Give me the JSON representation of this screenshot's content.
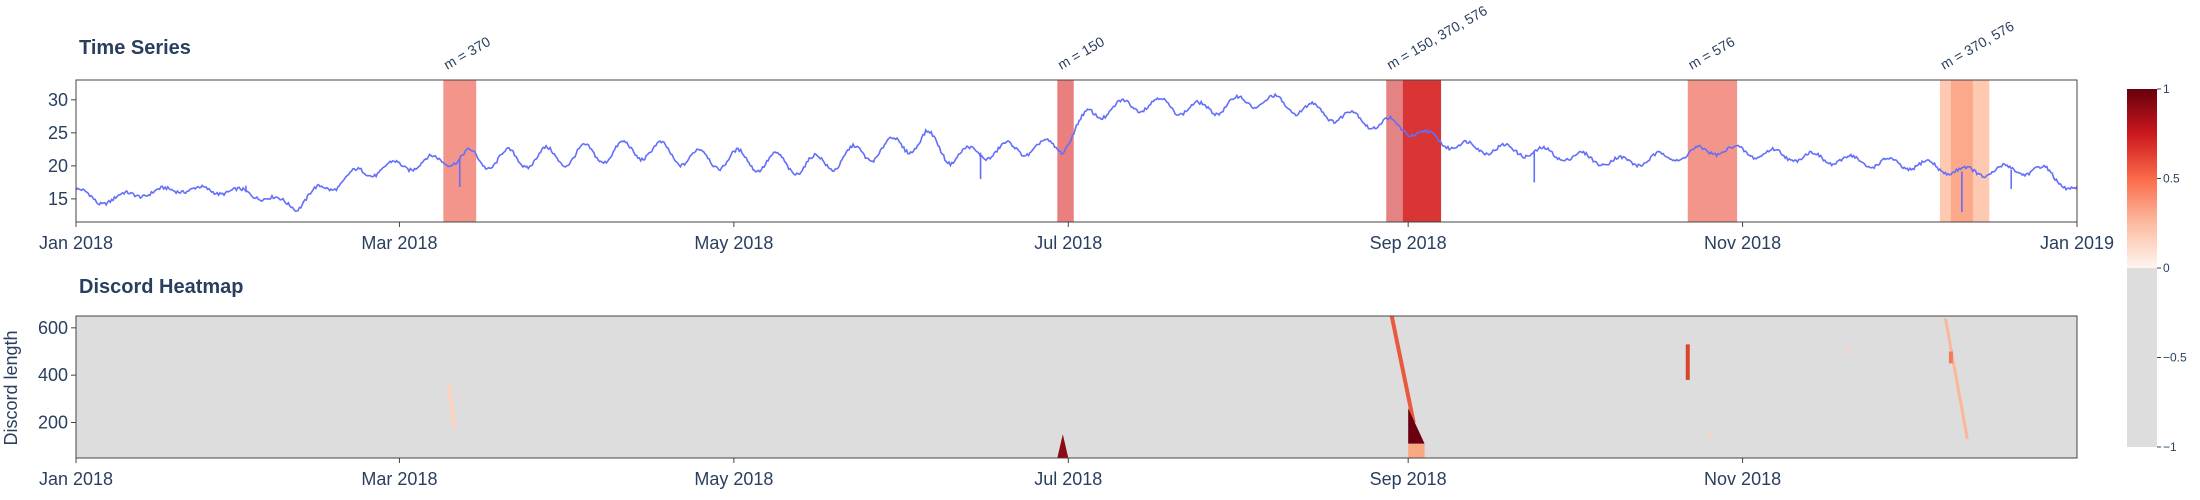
{
  "chart_data": [
    {
      "type": "line",
      "title": "Time Series",
      "x_range": [
        "2018-01-01",
        "2019-01-01"
      ],
      "ylim": [
        11.5,
        33
      ],
      "x_tick_labels": [
        "Jan 2018",
        "Mar 2018",
        "May 2018",
        "Jul 2018",
        "Sep 2018",
        "Nov 2018",
        "Jan 2019"
      ],
      "y_tick_labels": [
        "15",
        "20",
        "25",
        "30"
      ],
      "y_ticks": [
        15,
        20,
        25,
        30
      ],
      "line_color": "#636efa",
      "series_anchor_dates": [
        "2018-01-01",
        "2018-01-05",
        "2018-01-10",
        "2018-01-20",
        "2018-02-01",
        "2018-02-10",
        "2018-02-15",
        "2018-02-22",
        "2018-03-01",
        "2018-03-10",
        "2018-03-20",
        "2018-04-01",
        "2018-04-15",
        "2018-04-25",
        "2018-05-01",
        "2018-05-15",
        "2018-05-25",
        "2018-06-05",
        "2018-06-10",
        "2018-06-20",
        "2018-06-30",
        "2018-07-05",
        "2018-07-15",
        "2018-07-25",
        "2018-08-05",
        "2018-08-20",
        "2018-08-30",
        "2018-09-10",
        "2018-09-25",
        "2018-10-10",
        "2018-10-20",
        "2018-10-27",
        "2018-11-10",
        "2018-11-25",
        "2018-12-05",
        "2018-12-12",
        "2018-12-22",
        "2018-12-27",
        "2019-01-01"
      ],
      "series_anchor_values": [
        16.5,
        14.5,
        15.5,
        16.5,
        16.0,
        14.0,
        16.5,
        19.0,
        20.0,
        21.0,
        21.0,
        21.5,
        22.5,
        21.0,
        21.0,
        20.0,
        22.0,
        24.0,
        21.5,
        22.5,
        23.0,
        28.0,
        29.5,
        28.5,
        30.0,
        27.5,
        26.0,
        23.0,
        22.0,
        20.5,
        21.5,
        22.5,
        21.5,
        20.5,
        20.0,
        19.0,
        19.5,
        19.0,
        16.0
      ],
      "highlight_bands": [
        {
          "label": "m = 370",
          "start": "2018-03-09",
          "end": "2018-03-15",
          "color": "#f4958b",
          "opacity": 1.0
        },
        {
          "label": "m = 150",
          "start": "2018-06-29",
          "end": "2018-07-02",
          "color": "#e35454",
          "opacity": 0.75
        },
        {
          "label": "m = 150, 370, 576",
          "start": "2018-08-28",
          "end": "2018-08-31",
          "color": "#d95a5a",
          "opacity": 0.75
        },
        {
          "label": "",
          "start": "2018-08-31",
          "end": "2018-09-07",
          "color": "#d72a2a",
          "opacity": 0.95
        },
        {
          "label": "m = 576",
          "start": "2018-10-22",
          "end": "2018-10-31",
          "color": "#f4958b",
          "opacity": 1.0
        },
        {
          "label": "m = 370, 576",
          "start": "2018-12-07",
          "end": "2018-12-16",
          "color": "#fdc3a8",
          "opacity": 0.9
        },
        {
          "label": "",
          "start": "2018-12-09",
          "end": "2018-12-13",
          "color": "#fca486",
          "opacity": 0.9
        }
      ],
      "anomaly_dips": [
        {
          "date": "2018-03-12",
          "value": 16.8
        },
        {
          "date": "2018-12-11",
          "value": 13.0
        },
        {
          "date": "2018-09-24",
          "value": 17.5
        },
        {
          "date": "2018-02-01",
          "value": 17.0
        },
        {
          "date": "2018-06-15",
          "value": 18.0
        },
        {
          "date": "2018-12-20",
          "value": 16.5
        }
      ]
    },
    {
      "type": "heatmap",
      "title": "Discord Heatmap",
      "x_range": [
        "2018-01-01",
        "2019-01-01"
      ],
      "ylim": [
        50,
        650
      ],
      "ylabel": "Discord length",
      "x_tick_labels": [
        "Jan 2018",
        "Mar 2018",
        "May 2018",
        "Jul 2018",
        "Sep 2018",
        "Nov 2018"
      ],
      "y_tick_labels": [
        "200",
        "400",
        "600"
      ],
      "y_ticks": [
        200,
        400,
        600
      ],
      "background_value": -1,
      "background_color": "#dddddd",
      "features": [
        {
          "kind": "streak",
          "from": [
            "2018-03-10",
            360
          ],
          "to": [
            "2018-03-11",
            170
          ],
          "width": 4,
          "color": "#fcd2c0"
        },
        {
          "kind": "wedge",
          "points": [
            [
              "2018-06-30",
              150
            ],
            [
              "2018-07-01",
              50
            ],
            [
              "2018-06-29",
              50
            ]
          ],
          "color": "#8b0a14"
        },
        {
          "kind": "streak",
          "from": [
            "2018-08-29",
            650
          ],
          "to": [
            "2018-09-02",
            200
          ],
          "width": 4,
          "color": "#e8593f"
        },
        {
          "kind": "wedge",
          "points": [
            [
              "2018-09-01",
              260
            ],
            [
              "2018-09-04",
              110
            ],
            [
              "2018-09-01",
              110
            ]
          ],
          "color": "#6b0010"
        },
        {
          "kind": "wedge",
          "points": [
            [
              "2018-09-01",
              110
            ],
            [
              "2018-09-04",
              110
            ],
            [
              "2018-09-04",
              50
            ],
            [
              "2018-09-01",
              50
            ]
          ],
          "color": "#f9a882"
        },
        {
          "kind": "streak",
          "from": [
            "2018-10-22",
            530
          ],
          "to": [
            "2018-10-22",
            380
          ],
          "width": 4,
          "color": "#d9442c"
        },
        {
          "kind": "streak",
          "from": [
            "2018-12-08",
            640
          ],
          "to": [
            "2018-12-12",
            130
          ],
          "width": 3,
          "color": "#fcb79a"
        },
        {
          "kind": "streak",
          "from": [
            "2018-12-09",
            500
          ],
          "to": [
            "2018-12-09",
            450
          ],
          "width": 4,
          "color": "#f07c5e"
        },
        {
          "kind": "dot",
          "at": [
            "2018-10-26",
            140
          ],
          "color": "#fcd2c0"
        },
        {
          "kind": "dot",
          "at": [
            "2018-11-20",
            500
          ],
          "color": "#fcd2c0"
        }
      ]
    },
    {
      "type": "colorbar",
      "colorscale": [
        [
          -1,
          "#dddddd"
        ],
        [
          0,
          "#dddddd"
        ],
        [
          0,
          "#fff5f0"
        ],
        [
          0.25,
          "#fcbba1"
        ],
        [
          0.5,
          "#fb6a4a"
        ],
        [
          0.75,
          "#cb181d"
        ],
        [
          1,
          "#67000d"
        ]
      ],
      "tick_labels": [
        "1",
        "0.5",
        "0",
        "−0.5",
        "−1"
      ],
      "tick_values": [
        1,
        0.5,
        0,
        -0.5,
        -1
      ]
    }
  ]
}
